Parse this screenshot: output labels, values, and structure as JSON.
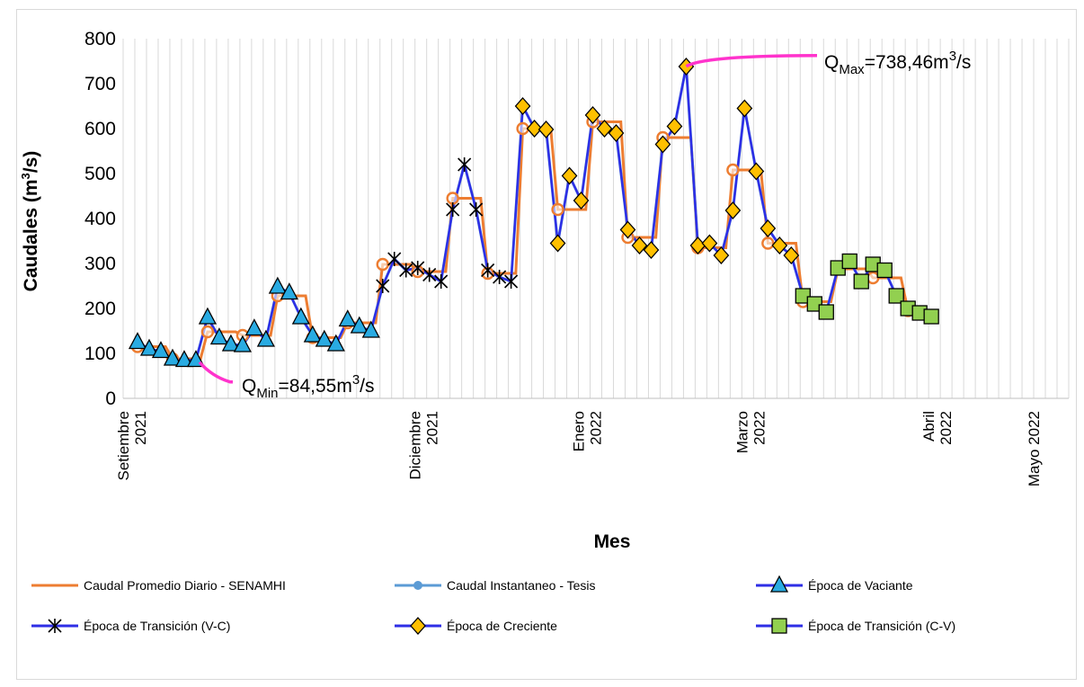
{
  "chart_data": {
    "type": "line",
    "ylabel_main": "Caudales (m",
    "ylabel_sup": "3",
    "ylabel_end": "/s)",
    "xlabel": "Mes",
    "ylim": [
      0,
      800
    ],
    "yticks": [
      "0",
      "100",
      "200",
      "300",
      "400",
      "500",
      "600",
      "700",
      "800"
    ],
    "grid": "vertical",
    "month_ticks": [
      {
        "index": 0,
        "lines": [
          "Setiembre",
          "2021"
        ]
      },
      {
        "index": 25,
        "lines": [
          "Diciembre",
          "2021"
        ]
      },
      {
        "index": 39,
        "lines": [
          "Enero",
          "2022"
        ]
      },
      {
        "index": 53,
        "lines": [
          "Marzo",
          "2022"
        ]
      },
      {
        "index": 69,
        "lines": [
          "Abril",
          "2022"
        ]
      },
      {
        "index": 78,
        "lines": [
          "Mayo 2022"
        ]
      }
    ],
    "n_points": 82,
    "instant": [
      125,
      110,
      105,
      88,
      85,
      85,
      180,
      135,
      120,
      118,
      155,
      130,
      248,
      235,
      180,
      140,
      130,
      120,
      175,
      160,
      150,
      250,
      310,
      285,
      290,
      275,
      260,
      420,
      520,
      420,
      285,
      270,
      260,
      650,
      600,
      598,
      345,
      495,
      440,
      630,
      600,
      590,
      375,
      340,
      330,
      565,
      605,
      738,
      340,
      345,
      318,
      418,
      645,
      505,
      378,
      340,
      318,
      228,
      210,
      192,
      290,
      305,
      260,
      298,
      285,
      228,
      200,
      190,
      182
    ],
    "instant_x": [
      0,
      1,
      2,
      3,
      4,
      5,
      6,
      7,
      8,
      9,
      10,
      11,
      12,
      13,
      14,
      15,
      16,
      17,
      18,
      19,
      20,
      21,
      22,
      23,
      24,
      25,
      26,
      27,
      28,
      29,
      30,
      31,
      32,
      33,
      34,
      35,
      36,
      37,
      38,
      39,
      40,
      41,
      42,
      43,
      44,
      45,
      46,
      47,
      48,
      49,
      50,
      51,
      52,
      53,
      54,
      55,
      56,
      57,
      58,
      59,
      60,
      61,
      62,
      63,
      64,
      65,
      66,
      67,
      68
    ],
    "senamhi_steps": [
      [
        0,
        115
      ],
      [
        3,
        88
      ],
      [
        6,
        148
      ],
      [
        9,
        140
      ],
      [
        12,
        228
      ],
      [
        15,
        135
      ],
      [
        18,
        168
      ],
      [
        21,
        298
      ],
      [
        24,
        282
      ],
      [
        27,
        445
      ],
      [
        30,
        278
      ],
      [
        33,
        600
      ],
      [
        36,
        420
      ],
      [
        39,
        615
      ],
      [
        42,
        358
      ],
      [
        45,
        580
      ],
      [
        48,
        335
      ],
      [
        51,
        508
      ],
      [
        54,
        345
      ],
      [
        57,
        215
      ],
      [
        60,
        288
      ],
      [
        63,
        268
      ],
      [
        66,
        195
      ],
      [
        68,
        195
      ]
    ],
    "senamhi_points": [
      [
        0,
        115
      ],
      [
        3,
        88
      ],
      [
        6,
        148
      ],
      [
        9,
        140
      ],
      [
        12,
        228
      ],
      [
        15,
        135
      ],
      [
        18,
        168
      ],
      [
        21,
        298
      ],
      [
        24,
        282
      ],
      [
        27,
        445
      ],
      [
        30,
        278
      ],
      [
        33,
        600
      ],
      [
        36,
        420
      ],
      [
        39,
        615
      ],
      [
        42,
        358
      ],
      [
        45,
        580
      ],
      [
        48,
        335
      ],
      [
        51,
        508
      ],
      [
        54,
        345
      ],
      [
        57,
        215
      ],
      [
        60,
        288
      ],
      [
        63,
        268
      ],
      [
        66,
        195
      ]
    ],
    "series": [
      {
        "name": "Caudal Promedio Diario - SENAMHI",
        "color": "#ed7d31",
        "marker": "circle-open"
      },
      {
        "name": "Caudal Instantaneo - Tesis",
        "color": "#5b9bd5",
        "marker": "dot"
      },
      {
        "name": "Época de Vaciante",
        "color": "#2e2ee6",
        "marker": "triangle",
        "fill": "#29abe2",
        "range": [
          0,
          20
        ]
      },
      {
        "name": "Época de Transición (V-C)",
        "color": "#2e2ee6",
        "marker": "star",
        "range": [
          21,
          32
        ]
      },
      {
        "name": "Época de Creciente",
        "color": "#2e2ee6",
        "marker": "diamond",
        "fill": "#ffc000",
        "range": [
          33,
          56
        ]
      },
      {
        "name": "Época de Transición (C-V)",
        "color": "#2e2ee6",
        "marker": "square",
        "fill": "#92d050",
        "range": [
          57,
          68
        ]
      }
    ],
    "annotations": {
      "qmin": {
        "q": "Q",
        "sub": "Min",
        "eq": "=84,55m",
        "sup": "3",
        "end": "/s",
        "color": "#ff33cc"
      },
      "qmax": {
        "q": "Q",
        "sub": "Max",
        "eq": "=738,46m",
        "sup": "3",
        "end": "/s",
        "color": "#ff33cc"
      }
    }
  }
}
